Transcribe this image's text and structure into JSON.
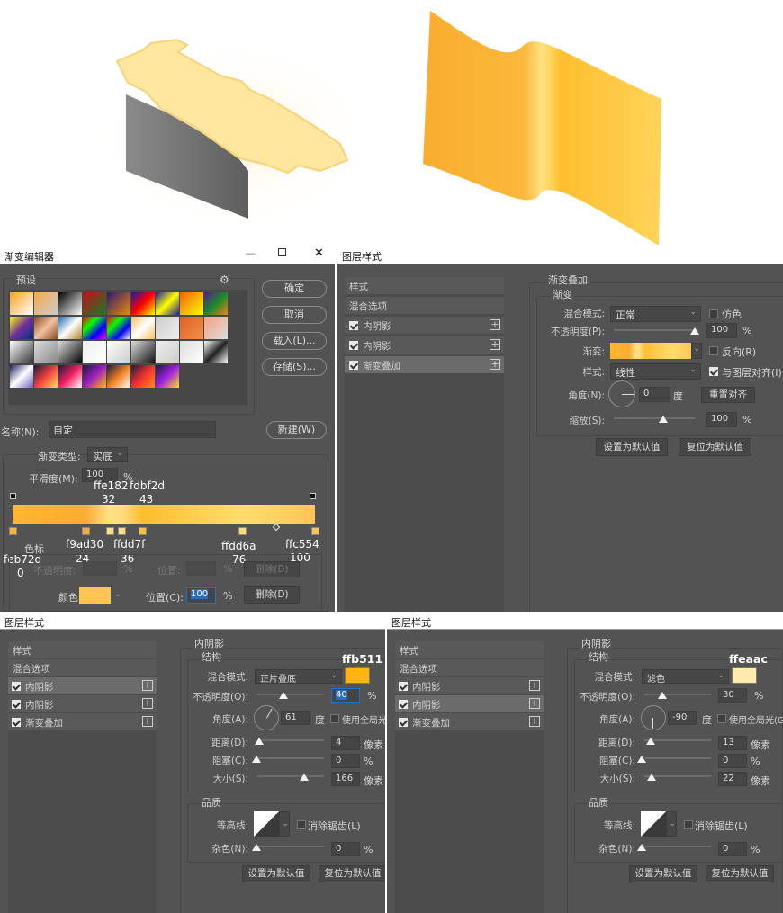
{
  "illustration_colors": {
    "cap": "#ffe7a0",
    "side": "#777777",
    "sheet": [
      "#f9ad30",
      "#ffe182",
      "#fdbf2d",
      "#ffd35a"
    ]
  },
  "gradient_editor": {
    "title": "渐变编辑器",
    "presets_label": "预设",
    "buttons": {
      "ok": "确定",
      "cancel": "取消",
      "load": "载入(L)...",
      "save": "存储(S)...",
      "new": "新建(W)"
    },
    "name_label": "名称(N):",
    "name_value": "自定",
    "type_label": "渐变类型:",
    "type_value": "实底",
    "smooth_label": "平滑度(M):",
    "smooth_value": "100",
    "pct": "%",
    "presets": [
      [
        "#f7a421",
        "#fff"
      ],
      [
        "#f6a84a",
        "#ccc"
      ],
      [
        "#000",
        "#fff"
      ],
      [
        "#c0121a",
        "#1a7a2a"
      ],
      [
        "#2a1a6a",
        "#f28a10"
      ],
      [
        "#1a1aa0",
        "#f00",
        "#ff0"
      ],
      [
        "#1a1aa0",
        "#ff0",
        "#1a1aa0"
      ],
      [
        "#f06010",
        "#ff0"
      ],
      [
        "#5a1a8a",
        "#1a8a2a",
        "#f08010"
      ],
      [
        "#ff0",
        "#7030a0",
        "#003080"
      ],
      [
        "#8a4a20",
        "#f0c0a0",
        "#8a4a20"
      ],
      [
        "#1a6ab0",
        "#fff",
        "#b08020"
      ],
      [
        "#f00",
        "#0f0",
        "#00f",
        "#f0f"
      ],
      [
        "#f00",
        "#0f0",
        "#00f",
        "#fff"
      ],
      [
        "#f6c060",
        "#fff",
        "#f6c060"
      ],
      [
        "#ccc",
        "#eee"
      ],
      [
        "#e06020",
        "#f09050"
      ],
      [
        "#f4a080",
        "#ddd"
      ],
      [
        "#fff",
        "#333"
      ],
      [
        "#ddd",
        "#888"
      ],
      [
        "#ddd",
        "#000"
      ],
      [
        "#eee",
        "#fff"
      ],
      [
        "#fff",
        "#ccc"
      ],
      [
        "#ddd",
        "#111"
      ],
      [
        "#eee",
        "#ccc"
      ],
      [
        "#ddd",
        "#fff"
      ],
      [
        "#fff",
        "#222",
        "#fff"
      ],
      [
        "#1a1a5a",
        "#fff",
        "#7060c0"
      ],
      [
        "#1a1a3a",
        "#f04040",
        "#ffe060"
      ],
      [
        "#1a1a3a",
        "#f02060",
        "#fff"
      ],
      [
        "#1a1a3a",
        "#a020c0",
        "#ffc000"
      ],
      [
        "#1a1a3a",
        "#f08020",
        "#fff"
      ],
      [
        "#1a1a3a",
        "#f03030",
        "#ff9020"
      ],
      [
        "#1a1a3a",
        "#a020e0",
        "#ffe020"
      ]
    ],
    "gradient_stops": [
      {
        "color": "#feb72d",
        "pos": 0,
        "label": "feb72d"
      },
      {
        "color": "#f9ad30",
        "pos": 24,
        "label": "f9ad30"
      },
      {
        "color": "#ffe182",
        "pos": 32,
        "label": "ffe182"
      },
      {
        "color": "#ffdd7f",
        "pos": 36,
        "label": "ffdd7f"
      },
      {
        "color": "#fdbf2d",
        "pos": 43,
        "label": "fdbf2d"
      },
      {
        "color": "#ffdd6a",
        "pos": 76,
        "label": "ffdd6a"
      },
      {
        "color": "#ffc554",
        "pos": 100,
        "label": "ffc554"
      }
    ],
    "ann": {
      "s0c": "feb72d",
      "s0p": "0",
      "s1c": "f9ad30",
      "s1p": "24",
      "s2c": "ffe182",
      "s2p": "32",
      "s3c": "ffdd7f",
      "s3p": "36",
      "s4c": "fdbf2d",
      "s4p": "43",
      "s5c": "ffdd6a",
      "s5p": "76",
      "s6c": "ffc554",
      "s6p": "100"
    },
    "stops_label": "色标",
    "opacity_label": "不透明度:",
    "location_label": "位置:",
    "delete_label": "删除(D)",
    "color_label": "颜色:",
    "color_value": "#ffc554",
    "location_c_label": "位置(C):",
    "location_c_value": "100"
  },
  "layer_style_gradient": {
    "title": "图层样式",
    "list": [
      "样式",
      "混合选项",
      "内阴影",
      "内阴影",
      "渐变叠加"
    ],
    "section": "渐变叠加",
    "group": "渐变",
    "blend_label": "混合模式:",
    "blend_value": "正常",
    "dither": "仿色",
    "opacity_label": "不透明度(P):",
    "opacity_value": "100",
    "opacity": 100,
    "gradient_label": "渐变:",
    "reverse": "反向(R)",
    "style_label": "样式:",
    "style_value": "线性",
    "align": "与图层对齐(I)",
    "angle_label": "角度(N):",
    "angle_value": "0",
    "degree": "度",
    "reset_align": "重置对齐",
    "scale_label": "缩放(S):",
    "scale_value": "100",
    "scale": 100,
    "pct": "%",
    "make_default": "设置为默认值",
    "reset_default": "复位为默认值"
  },
  "inner_shadows": [
    {
      "title": "图层样式",
      "list": [
        "样式",
        "混合选项",
        "内阴影",
        "内阴影",
        "渐变叠加"
      ],
      "selected": 2,
      "section": "内阴影",
      "structure": "结构",
      "blend_label": "混合模式:",
      "blend_value": "正片叠底",
      "color": "#ffb511",
      "color_ann": "ffb511",
      "opacity_label": "不透明度(O):",
      "opacity_value": "40",
      "opacity": 40,
      "angle_label": "角度(A):",
      "angle_value": "61",
      "angle": 61,
      "degree": "度",
      "global_light": "使用全局光",
      "distance_label": "距离(D):",
      "distance_value": "4",
      "choke_label": "阻塞(C):",
      "choke_value": "0",
      "size_label": "大小(S):",
      "size_value": "166",
      "px": "像素",
      "pct": "%",
      "quality": "品质",
      "contour_label": "等高线:",
      "antialias": "消除锯齿(L)",
      "noise_label": "杂色(N):",
      "noise_value": "0",
      "make_default": "设置为默认值",
      "reset_default": "复位为默认值"
    },
    {
      "title": "图层样式",
      "list": [
        "样式",
        "混合选项",
        "内阴影",
        "内阴影",
        "渐变叠加"
      ],
      "selected": 3,
      "section": "内阴影",
      "structure": "结构",
      "blend_label": "混合模式:",
      "blend_value": "滤色",
      "color": "#ffeaac",
      "color_ann": "ffeaac",
      "opacity_label": "不透明度(O):",
      "opacity_value": "30",
      "opacity": 30,
      "angle_label": "角度(A):",
      "angle_value": "-90",
      "angle": -90,
      "degree": "度",
      "global_light": "使用全局光(G)",
      "distance_label": "距离(D):",
      "distance_value": "13",
      "choke_label": "阻塞(C):",
      "choke_value": "0",
      "size_label": "大小(S):",
      "size_value": "22",
      "px": "像素",
      "pct": "%",
      "quality": "品质",
      "contour_label": "等高线:",
      "antialias": "消除锯齿(L)",
      "noise_label": "杂色(N):",
      "noise_value": "0",
      "make_default": "设置为默认值",
      "reset_default": "复位为默认值"
    }
  ]
}
